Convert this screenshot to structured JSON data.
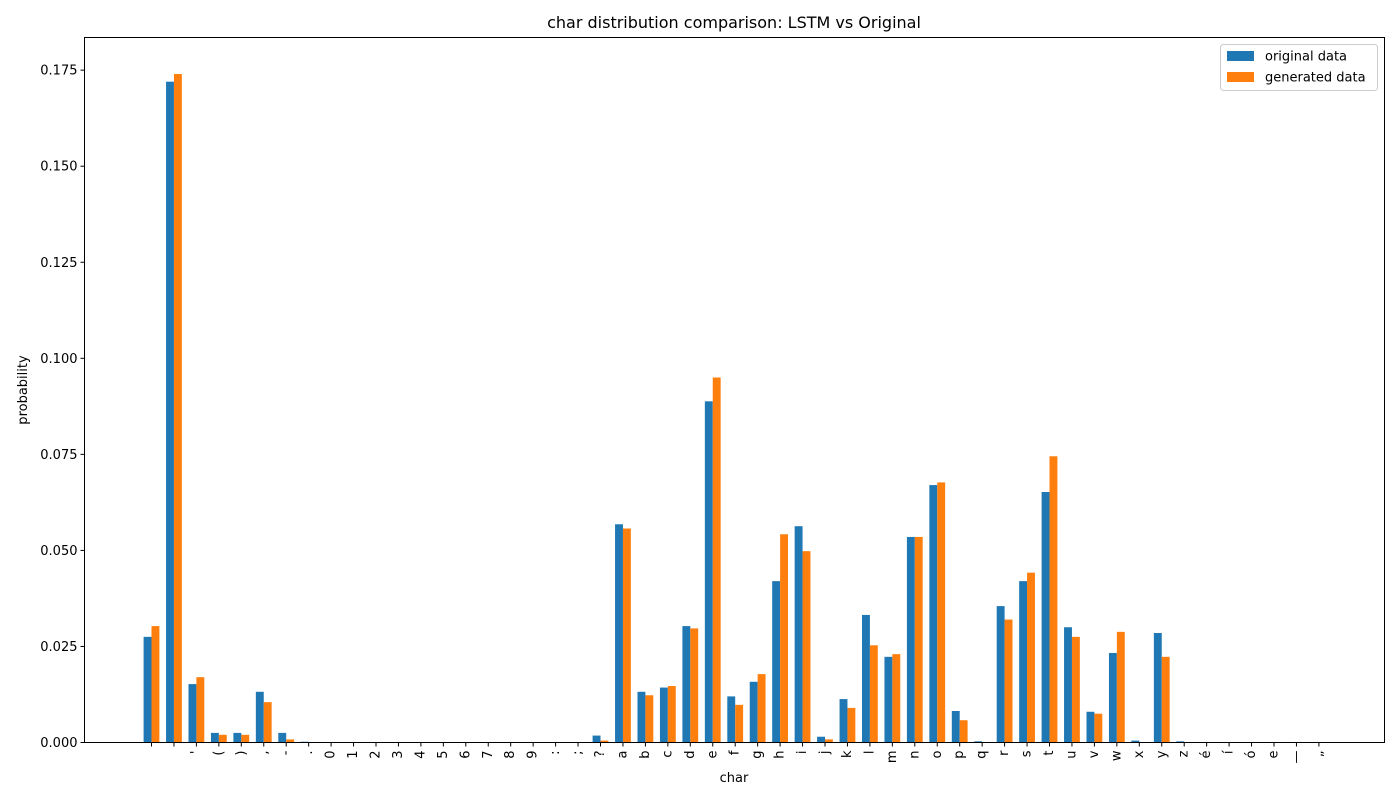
{
  "chart_data": {
    "type": "bar",
    "title": "char distribution comparison: LSTM vs Original",
    "xlabel": "char",
    "ylabel": "probability",
    "ylim": [
      0,
      0.1835
    ],
    "yticks": [
      "0.000",
      "0.025",
      "0.050",
      "0.075",
      "0.100",
      "0.125",
      "0.150",
      "0.175"
    ],
    "legend_position": "top-right",
    "grid": false,
    "categories": [
      "\n",
      " ",
      "'",
      "(",
      ")",
      ",",
      "-",
      ".",
      "0",
      "1",
      "2",
      "3",
      "4",
      "5",
      "6",
      "7",
      "8",
      "9",
      ":",
      ";",
      "?",
      "a",
      "b",
      "c",
      "d",
      "e",
      "f",
      "g",
      "h",
      "i",
      "j",
      "k",
      "l",
      "m",
      "n",
      "o",
      "p",
      "q",
      "r",
      "s",
      "t",
      "u",
      "v",
      "w",
      "x",
      "y",
      "z",
      "é",
      "í",
      "ó",
      "е",
      "—",
      "„"
    ],
    "series": [
      {
        "name": "original data",
        "color": "#1f77b4",
        "values": [
          0.0275,
          0.172,
          0.0152,
          0.0025,
          0.0025,
          0.0132,
          0.0025,
          0.0002,
          0.0001,
          0.0001,
          0.0001,
          0.0001,
          0.0001,
          0.0001,
          0.0001,
          0.0001,
          0.0001,
          0.0001,
          0.0001,
          0.0001,
          0.0018,
          0.0568,
          0.0132,
          0.0143,
          0.0303,
          0.0888,
          0.012,
          0.0158,
          0.042,
          0.0563,
          0.0015,
          0.0113,
          0.0332,
          0.0223,
          0.0535,
          0.067,
          0.0082,
          0.0003,
          0.0355,
          0.042,
          0.0652,
          0.03,
          0.008,
          0.0233,
          0.0005,
          0.0285,
          0.0003,
          0.0001,
          0.0001,
          0.0001,
          0.0001,
          0.0001,
          0.0001
        ]
      },
      {
        "name": "generated data",
        "color": "#ff7f0e",
        "values": [
          0.0303,
          0.174,
          0.017,
          0.002,
          0.002,
          0.0105,
          0.0008,
          0.0001,
          0.0,
          0.0,
          0.0,
          0.0,
          0.0,
          0.0,
          0.0,
          0.0,
          0.0,
          0.0,
          0.0,
          0.0,
          0.0005,
          0.0557,
          0.0123,
          0.0147,
          0.0297,
          0.095,
          0.0098,
          0.0178,
          0.0542,
          0.0498,
          0.0008,
          0.009,
          0.0253,
          0.023,
          0.0535,
          0.0677,
          0.0058,
          0.0,
          0.032,
          0.0442,
          0.0745,
          0.0275,
          0.0075,
          0.0288,
          0.0001,
          0.0223,
          0.0,
          0.0,
          0.0,
          0.0,
          0.0,
          0.0,
          0.0
        ]
      }
    ]
  }
}
